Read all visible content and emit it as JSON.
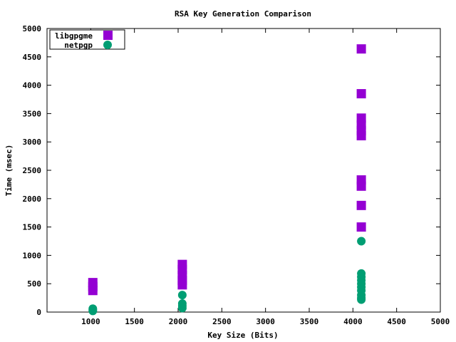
{
  "chart_data": {
    "type": "scatter",
    "title": "RSA Key Generation Comparison",
    "xlabel": "Key Size (Bits)",
    "ylabel": "Time (msec)",
    "xlim": [
      500,
      5000
    ],
    "ylim": [
      0,
      5000
    ],
    "xticks": [
      1000,
      1500,
      2000,
      2500,
      3000,
      3500,
      4000,
      4500,
      5000
    ],
    "yticks": [
      0,
      500,
      1000,
      1500,
      2000,
      2500,
      3000,
      3500,
      4000,
      4500,
      5000
    ],
    "grid": false,
    "legend": "top-left",
    "series": [
      {
        "name": "libgpgme",
        "marker": "square",
        "color": "#9400d3",
        "points": [
          [
            1024,
            520
          ],
          [
            1024,
            450
          ],
          [
            1024,
            380
          ],
          [
            2048,
            840
          ],
          [
            2048,
            750
          ],
          [
            2048,
            650
          ],
          [
            2048,
            560
          ],
          [
            2048,
            480
          ],
          [
            4096,
            4640
          ],
          [
            4096,
            3850
          ],
          [
            4096,
            3420
          ],
          [
            4096,
            3300
          ],
          [
            4096,
            3200
          ],
          [
            4096,
            3110
          ],
          [
            4096,
            2330
          ],
          [
            4096,
            2220
          ],
          [
            4096,
            1880
          ],
          [
            4096,
            1500
          ]
        ]
      },
      {
        "name": "netpgp",
        "marker": "circle",
        "color": "#009e73",
        "points": [
          [
            1024,
            20
          ],
          [
            1024,
            40
          ],
          [
            1024,
            60
          ],
          [
            2048,
            300
          ],
          [
            2048,
            150
          ],
          [
            2048,
            110
          ],
          [
            2048,
            70
          ],
          [
            4096,
            1250
          ],
          [
            4096,
            680
          ],
          [
            4096,
            620
          ],
          [
            4096,
            560
          ],
          [
            4096,
            500
          ],
          [
            4096,
            440
          ],
          [
            4096,
            380
          ],
          [
            4096,
            300
          ],
          [
            4096,
            250
          ],
          [
            4096,
            220
          ]
        ]
      }
    ]
  }
}
